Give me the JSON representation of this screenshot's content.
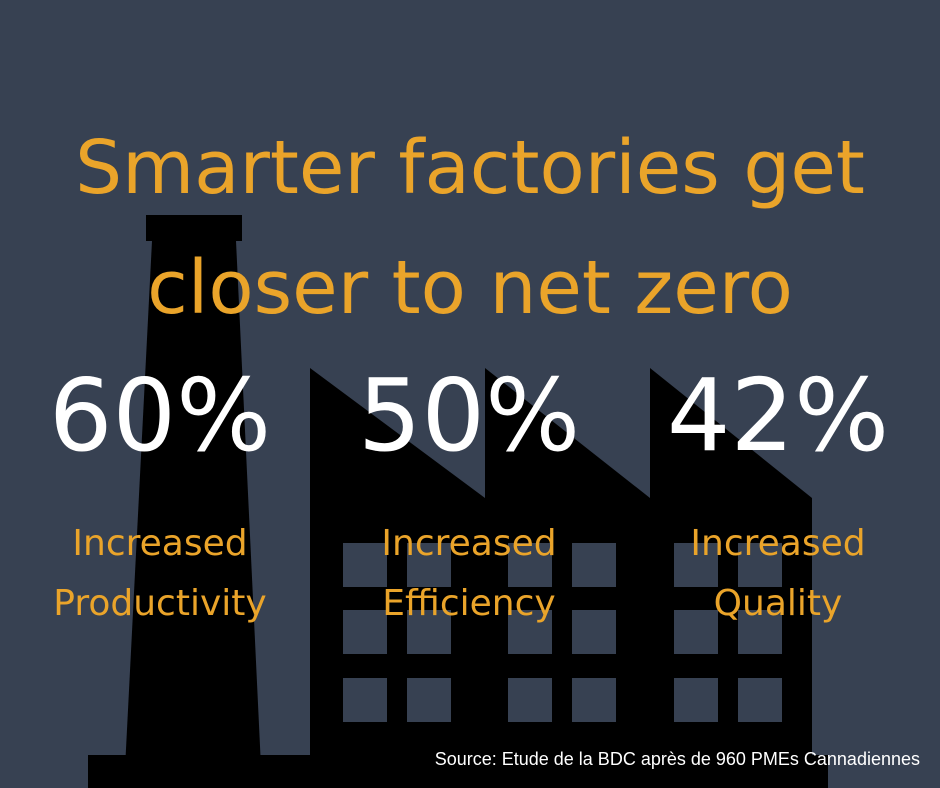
{
  "headline": {
    "line1": "Smarter factories get",
    "line2": "closer to net zero"
  },
  "stats": [
    {
      "value": "60%",
      "label_line1": "Increased",
      "label_line2": "Productivity"
    },
    {
      "value": "50%",
      "label_line1": "Increased",
      "label_line2": "Efficiency"
    },
    {
      "value": "42%",
      "label_line1": "Increased",
      "label_line2": "Quality"
    }
  ],
  "source": "Source: Etude de la BDC après de 960 PMEs Cannadiennes",
  "colors": {
    "background": "#374152",
    "accent": "#eaa42a",
    "silhouette": "#000000",
    "value_text": "#ffffff"
  },
  "icons": [
    "factory-silhouette-icon"
  ]
}
